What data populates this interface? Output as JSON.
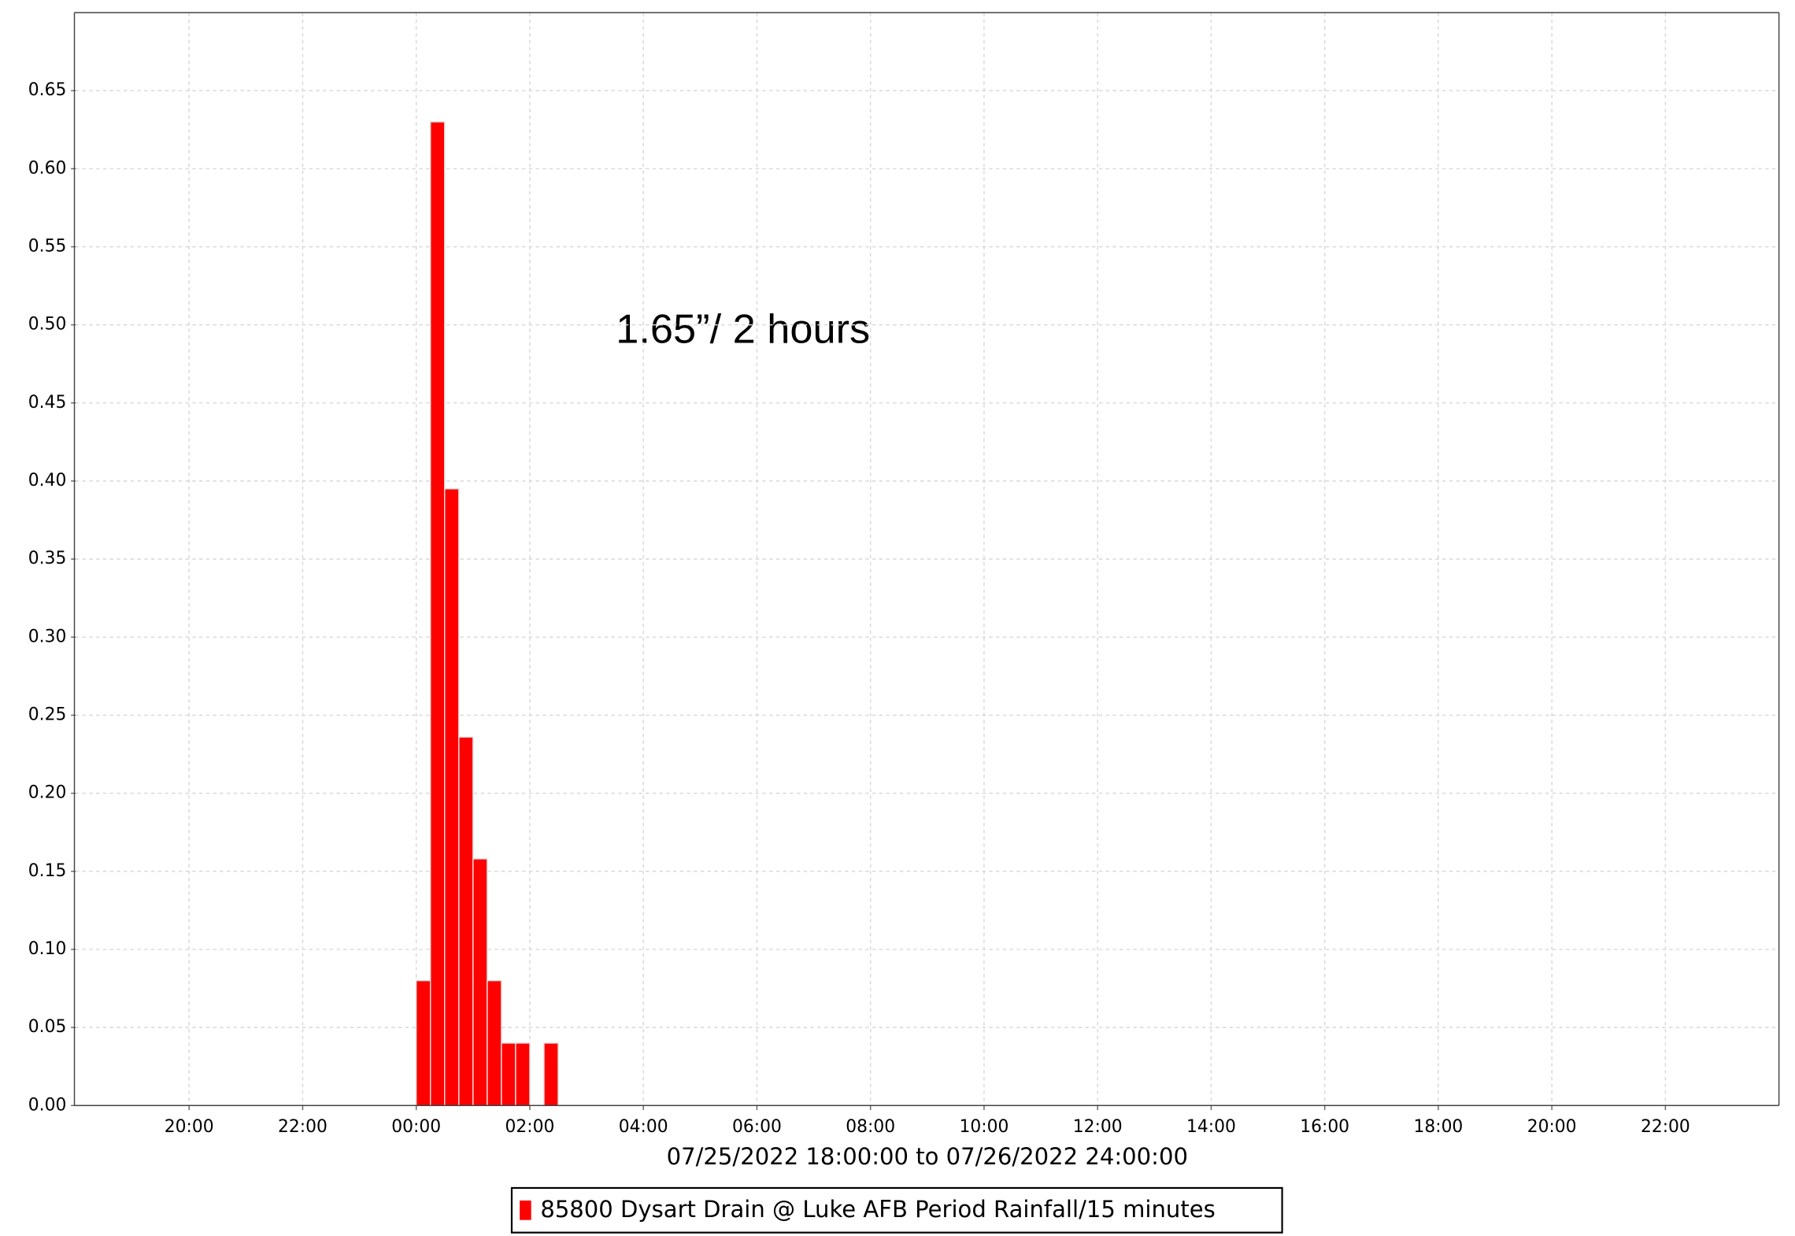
{
  "chart_data": {
    "type": "histogram",
    "annotation": "1.65”/ 2 hours",
    "x_label": "07/25/2022 18:00:00 to 07/26/2022 24:00:00",
    "bins": [
      24,
      24.25,
      24.5,
      24.75,
      25,
      25.25,
      25.5,
      25.75,
      26,
      26.25,
      26.5,
      26.75
    ],
    "series": [
      {
        "name": "85800 Dysart Drain @ Luke AFB Period Rainfall/15 minutes",
        "color": "#ff0000",
        "values": [
          0.08,
          0.63,
          0.395,
          0.236,
          0.158,
          0.08,
          0.04,
          0.04,
          0,
          0.04,
          0
        ]
      }
    ],
    "xlim": [
      18,
      48
    ],
    "xticks": [
      {
        "value": 20,
        "label": "20:00"
      },
      {
        "value": 22,
        "label": "22:00"
      },
      {
        "value": 24,
        "label": "00:00"
      },
      {
        "value": 26,
        "label": "02:00"
      },
      {
        "value": 28,
        "label": "04:00"
      },
      {
        "value": 30,
        "label": "06:00"
      },
      {
        "value": 32,
        "label": "08:00"
      },
      {
        "value": 34,
        "label": "10:00"
      },
      {
        "value": 36,
        "label": "12:00"
      },
      {
        "value": 38,
        "label": "14:00"
      },
      {
        "value": 40,
        "label": "16:00"
      },
      {
        "value": 42,
        "label": "18:00"
      },
      {
        "value": 44,
        "label": "20:00"
      },
      {
        "value": 46,
        "label": "22:00"
      }
    ],
    "ylim": [
      0,
      0.7
    ],
    "yticks": [
      {
        "value": 0,
        "label": "0.00"
      },
      0.05,
      {
        "value": 0.1,
        "label": "0.10"
      },
      0.15,
      {
        "value": 0.2,
        "label": "0.20"
      },
      0.25,
      {
        "value": 0.3,
        "label": "0.30"
      },
      0.35,
      {
        "value": 0.4,
        "label": "0.40"
      },
      0.45,
      {
        "value": 0.5,
        "label": "0.50"
      },
      0.55,
      {
        "value": 0.6,
        "label": "0.60"
      },
      0.65
    ],
    "grid": true
  }
}
